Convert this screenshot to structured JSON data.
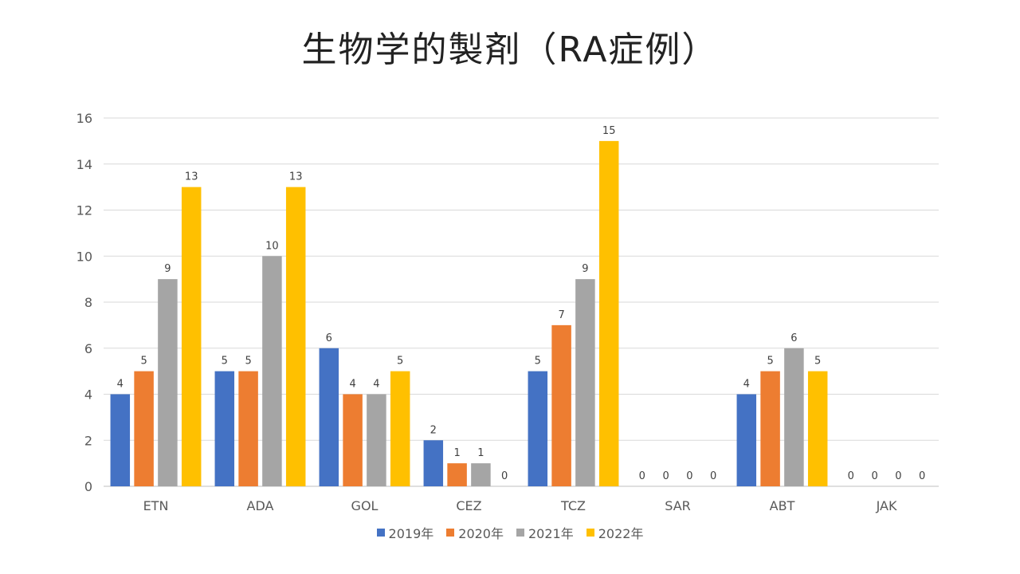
{
  "chart_data": {
    "type": "bar",
    "title": "生物学的製剤（RA症例）",
    "xlabel": "",
    "ylabel": "",
    "ylim": [
      0,
      16
    ],
    "yticks": [
      0,
      2,
      4,
      6,
      8,
      10,
      12,
      14,
      16
    ],
    "grid": true,
    "legend_position": "bottom",
    "categories": [
      "ETN",
      "ADA",
      "GOL",
      "CEZ",
      "TCZ",
      "SAR",
      "ABT",
      "JAK"
    ],
    "series": [
      {
        "name": "2019年",
        "color": "#4472C4",
        "values": [
          4,
          5,
          6,
          2,
          5,
          0,
          4,
          0
        ]
      },
      {
        "name": "2020年",
        "color": "#ED7D31",
        "values": [
          5,
          5,
          4,
          1,
          7,
          0,
          5,
          0
        ]
      },
      {
        "name": "2021年",
        "color": "#A5A5A5",
        "values": [
          9,
          10,
          4,
          1,
          9,
          0,
          6,
          0
        ]
      },
      {
        "name": "2022年",
        "color": "#FFC000",
        "values": [
          13,
          13,
          5,
          0,
          15,
          0,
          5,
          0
        ]
      }
    ]
  }
}
